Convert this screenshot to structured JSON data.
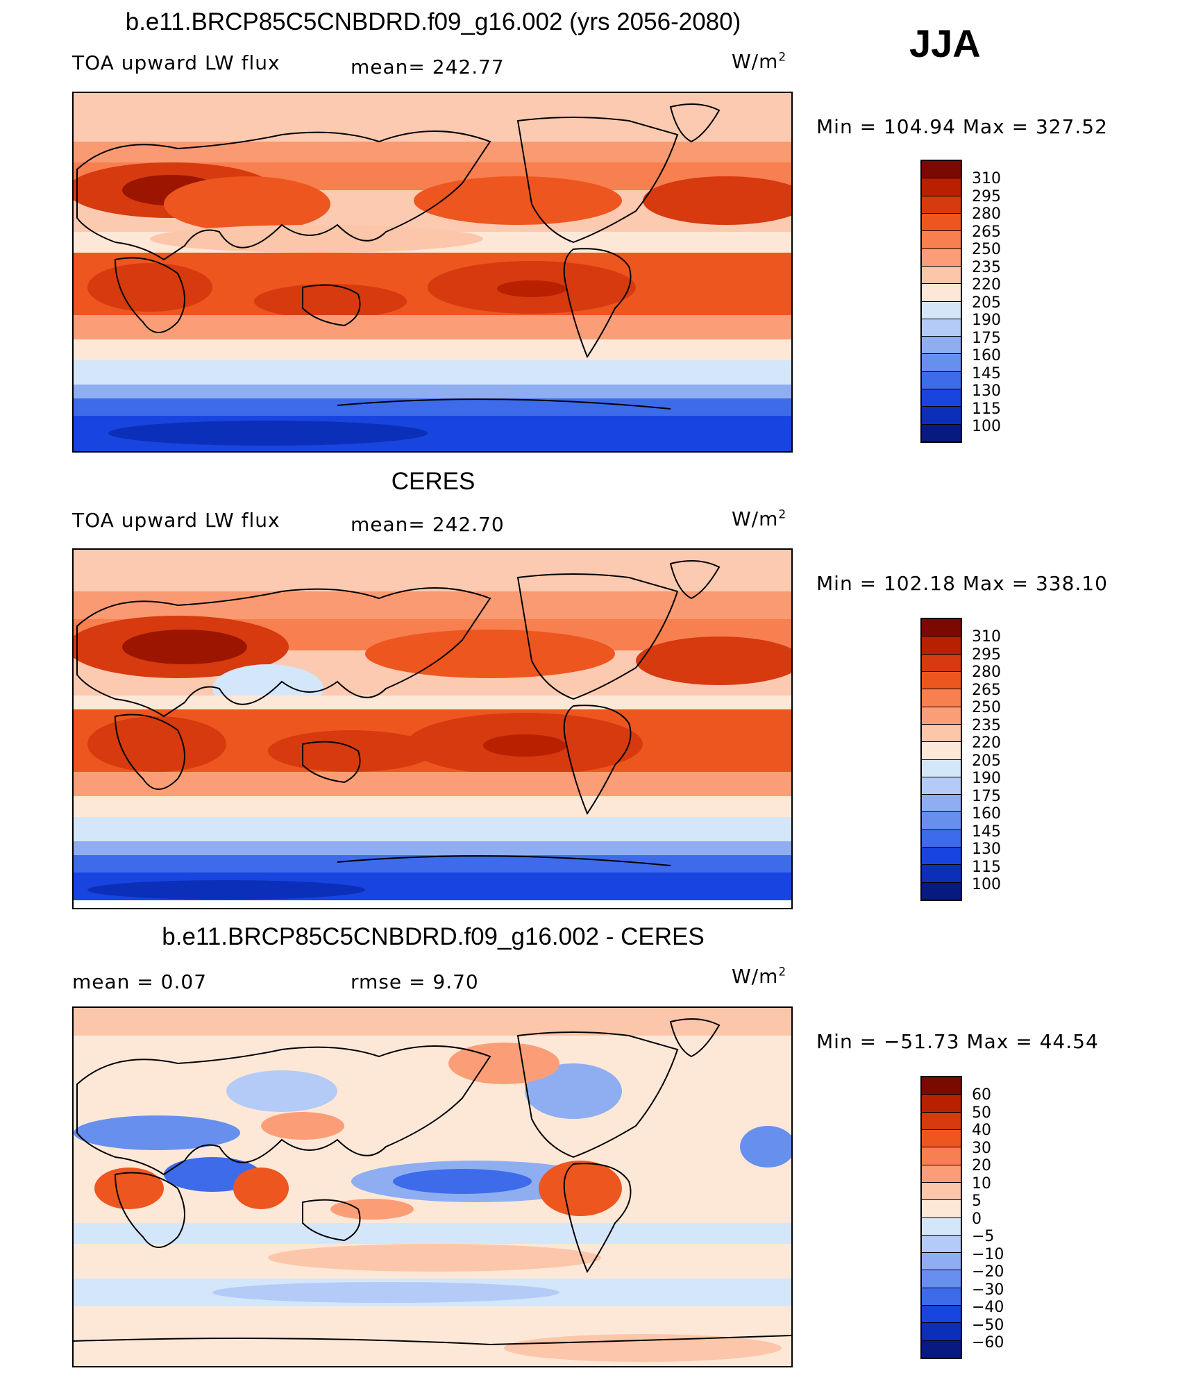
{
  "season": "JJA",
  "panels": [
    {
      "title": "b.e11.BRCP85C5CNBDRD.f09_g16.002 (yrs 2056-2080)",
      "left_label": "TOA upward LW flux",
      "center_label": "mean= 242.77",
      "units": "W/m",
      "units_sup": "2",
      "minmax": "Min  =  104.94  Max  =  327.52"
    },
    {
      "title": "CERES",
      "left_label": "TOA upward LW flux",
      "center_label": "mean= 242.70",
      "units": "W/m",
      "units_sup": "2",
      "minmax": "Min  =  102.18  Max  =  338.10"
    },
    {
      "title": "b.e11.BRCP85C5CNBDRD.f09_g16.002 - CERES",
      "left_label": "mean =     0.07",
      "center_label": "rmse =     9.70",
      "units": "W/m",
      "units_sup": "2",
      "minmax": "Min  =  −51.73  Max  =    44.54"
    }
  ],
  "chart_data": [
    {
      "type": "heatmap",
      "title": "b.e11.BRCP85C5CNBDRD.f09_g16.002 (yrs 2056-2080)",
      "subtitle": "TOA upward LW flux",
      "mean": 242.77,
      "units": "W/m2",
      "min": 104.94,
      "max": 327.52,
      "colorbar_levels": [
        310,
        295,
        280,
        265,
        250,
        235,
        220,
        205,
        190,
        175,
        160,
        145,
        130,
        115,
        100
      ],
      "colorbar_colors": [
        "#7a0a00",
        "#b82000",
        "#d63a0e",
        "#ee561f",
        "#f77f50",
        "#fb9e78",
        "#fcc6aa",
        "#fde8d8",
        "#d4e6fa",
        "#b3cbf6",
        "#8eaef1",
        "#6790ee",
        "#3d6bea",
        "#1844e0",
        "#0b2fb8",
        "#061a80"
      ]
    },
    {
      "type": "heatmap",
      "title": "CERES",
      "subtitle": "TOA upward LW flux",
      "mean": 242.7,
      "units": "W/m2",
      "min": 102.18,
      "max": 338.1,
      "colorbar_levels": [
        310,
        295,
        280,
        265,
        250,
        235,
        220,
        205,
        190,
        175,
        160,
        145,
        130,
        115,
        100
      ],
      "colorbar_colors": [
        "#7a0a00",
        "#b82000",
        "#d63a0e",
        "#ee561f",
        "#f77f50",
        "#fb9e78",
        "#fcc6aa",
        "#fde8d8",
        "#d4e6fa",
        "#b3cbf6",
        "#8eaef1",
        "#6790ee",
        "#3d6bea",
        "#1844e0",
        "#0b2fb8",
        "#061a80"
      ]
    },
    {
      "type": "heatmap",
      "title": "b.e11.BRCP85C5CNBDRD.f09_g16.002 - CERES",
      "mean": 0.07,
      "rmse": 9.7,
      "units": "W/m2",
      "min": -51.73,
      "max": 44.54,
      "colorbar_levels": [
        "60",
        "50",
        "40",
        "30",
        "20",
        "10",
        "5",
        "0",
        "−5",
        "−10",
        "−20",
        "−30",
        "−40",
        "−50",
        "−60"
      ],
      "colorbar_colors": [
        "#7a0a00",
        "#b82000",
        "#d63a0e",
        "#ee561f",
        "#f77f50",
        "#fb9e78",
        "#fcc6aa",
        "#fde8d8",
        "#d4e6fa",
        "#b3cbf6",
        "#8eaef1",
        "#6790ee",
        "#3d6bea",
        "#1844e0",
        "#0b2fb8",
        "#061a80"
      ]
    }
  ]
}
